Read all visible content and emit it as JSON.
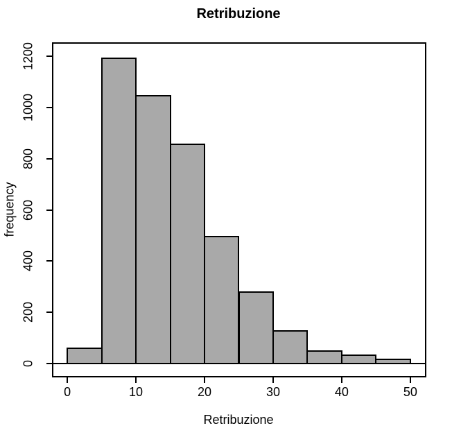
{
  "chart_data": {
    "type": "bar",
    "subtype": "histogram",
    "title": "Retribuzione",
    "xlabel": "Retribuzione",
    "ylabel": "frequency",
    "bin_edges": [
      0,
      5,
      10,
      15,
      20,
      25,
      30,
      35,
      40,
      45,
      50
    ],
    "values": [
      60,
      1190,
      1045,
      855,
      495,
      280,
      127,
      49,
      34,
      18
    ],
    "x_ticks": [
      0,
      10,
      20,
      30,
      40,
      50
    ],
    "y_ticks": [
      0,
      200,
      400,
      600,
      800,
      1000,
      1200
    ],
    "xlim": [
      -2.08,
      52.08
    ],
    "ylim": [
      -48,
      1248
    ],
    "grid": false,
    "legend": null,
    "bar_fill": "#a9a9a9",
    "bar_border": "#000000",
    "axis_color": "#000000",
    "background": "#ffffff"
  }
}
